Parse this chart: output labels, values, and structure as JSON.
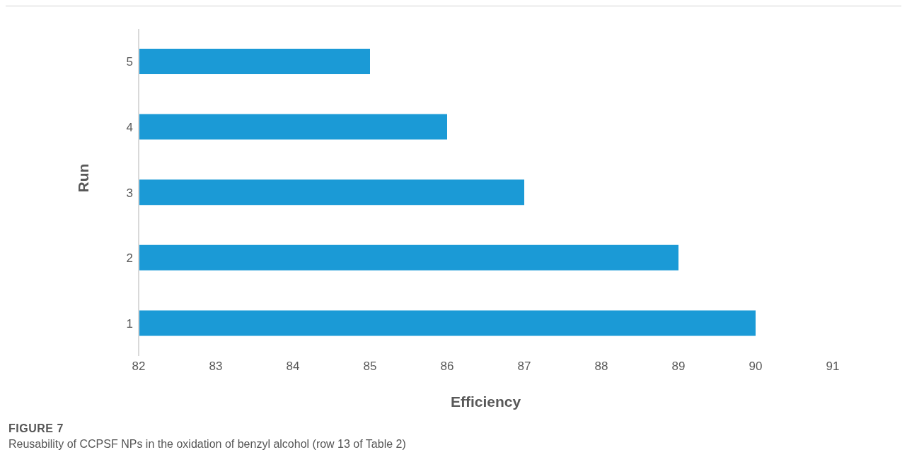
{
  "chart_data": {
    "type": "bar",
    "orientation": "horizontal",
    "xlabel": "Efficiency",
    "ylabel": "Run",
    "categories": [
      "5",
      "4",
      "3",
      "2",
      "1"
    ],
    "values": [
      85,
      86,
      87,
      89,
      90
    ],
    "color": "#1b9ad6",
    "xlim": [
      82,
      91
    ],
    "xticks": [
      82,
      83,
      84,
      85,
      86,
      87,
      88,
      89,
      90,
      91
    ],
    "grid": false,
    "legend": false,
    "annotations": [
      "FIGURE 7",
      "Reusability of CCPSF NPs in the oxidation of benzyl alcohol (row 13 of Table 2)"
    ]
  }
}
